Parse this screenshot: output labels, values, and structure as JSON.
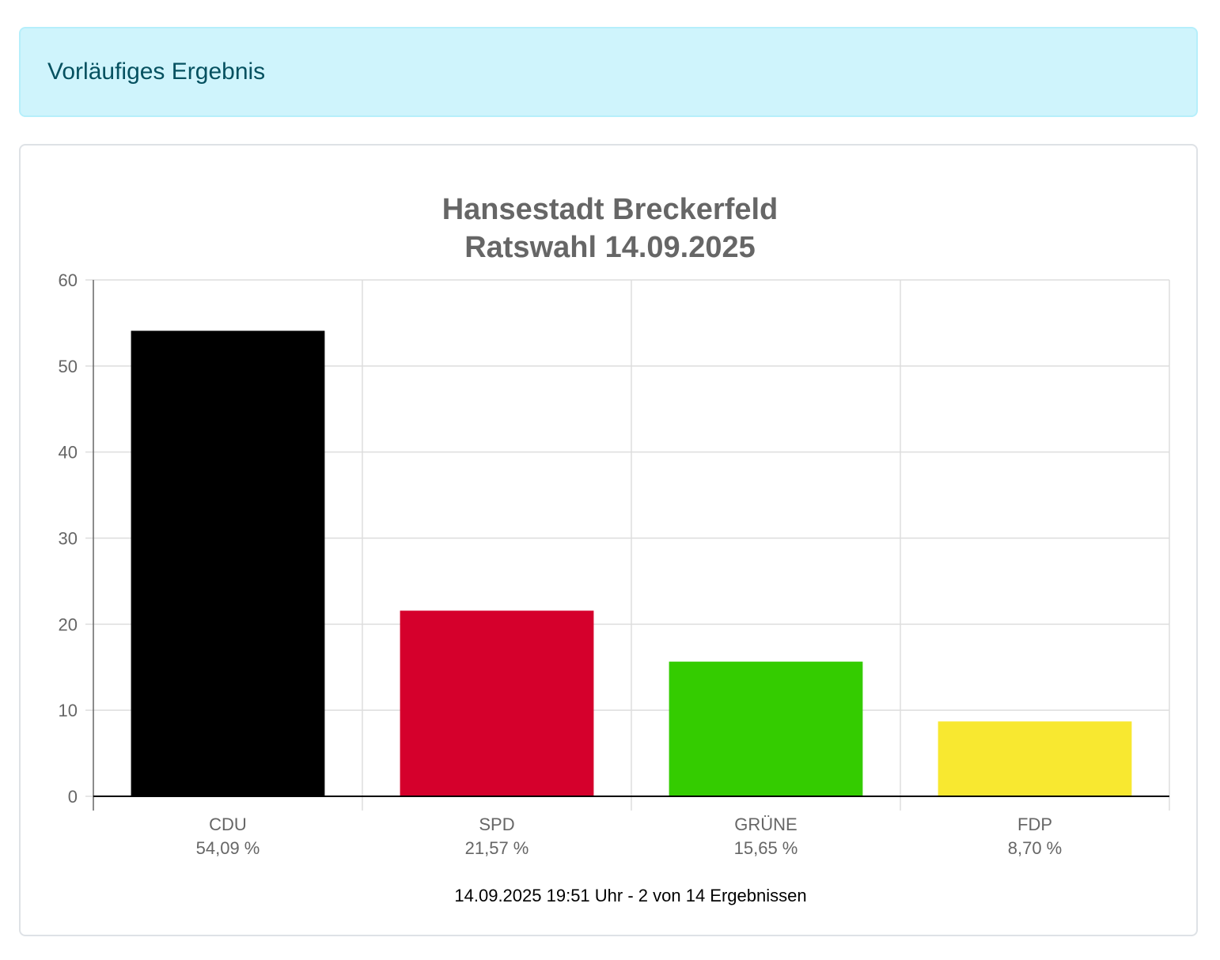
{
  "alert": {
    "text": "Vorläufiges Ergebnis",
    "background": "#cff4fc",
    "text_color": "#055160"
  },
  "chart_data": {
    "type": "bar",
    "title": [
      "Hansestadt Breckerfeld",
      "Ratswahl 14.09.2025"
    ],
    "categories": [
      "CDU",
      "SPD",
      "GRÜNE",
      "FDP"
    ],
    "values": [
      54.09,
      21.57,
      15.65,
      8.7
    ],
    "value_labels": [
      "54,09 %",
      "21,57 %",
      "15,65 %",
      "8,70 %"
    ],
    "colors": [
      "#000000",
      "#d5002c",
      "#34cc00",
      "#f8e830"
    ],
    "ylim": [
      0,
      60
    ],
    "yticks": [
      0,
      10,
      20,
      30,
      40,
      50,
      60
    ],
    "grid": true,
    "footer": "14.09.2025 19:51 Uhr - 2 von 14 Ergebnissen"
  }
}
